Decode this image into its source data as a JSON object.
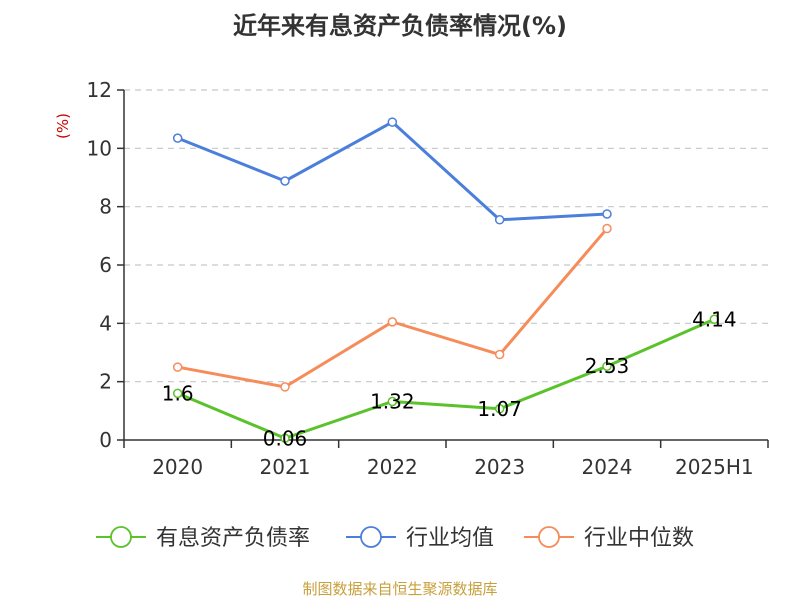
{
  "chart_data": {
    "type": "line",
    "title": "近年来有息资产负债率情况(%)",
    "ylabel": "(%)",
    "categories": [
      "2020",
      "2021",
      "2022",
      "2023",
      "2024",
      "2025H1"
    ],
    "ylim": [
      0,
      12
    ],
    "yticks": [
      0,
      2,
      4,
      6,
      8,
      10,
      12
    ],
    "grid": "horizontal dashed",
    "legend_position": "bottom",
    "series": [
      {
        "name": "有息资产负债率",
        "color": "#5ac22a",
        "values": [
          1.6,
          0.06,
          1.32,
          1.07,
          2.53,
          4.14
        ],
        "labels": [
          "1.6",
          "0.06",
          "1.32",
          "1.07",
          "2.53",
          "4.14"
        ]
      },
      {
        "name": "行业均值",
        "color": "#4c7fdb",
        "values": [
          10.35,
          8.88,
          10.9,
          7.55,
          7.75,
          null
        ]
      },
      {
        "name": "行业中位数",
        "color": "#f58c5a",
        "values": [
          2.5,
          1.82,
          4.05,
          2.93,
          7.25,
          null
        ]
      }
    ]
  },
  "source": "制图数据来自恒生聚源数据库"
}
